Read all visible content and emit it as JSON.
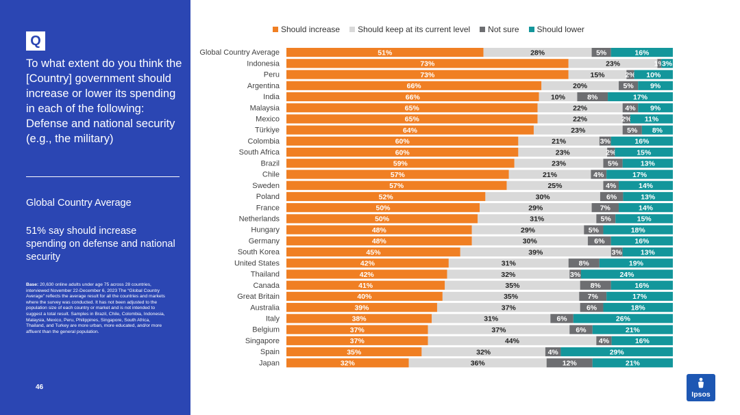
{
  "question": {
    "badge": "Q",
    "text": "To what extent do you think the [Country] government should increase or lower its spending in each of the following: Defense and national security (e.g., the military)"
  },
  "summary": {
    "title": "Global Country Average",
    "text": "51% say should increase spending on defense and national security"
  },
  "base_note": {
    "label": "Base:",
    "text": " 20,630 online adults under age 75 across 28 countries, interviewed November 22-December 6, 2023 The “Global Country Average” reflects the average result for all the countries and markets where the survey was conducted. It has not been adjusted to the population size of each country or market and is not intended to suggest a total result. Samples in Brazil, Chile, Colombia, Indonesia, Malaysia, Mexico, Peru, Philippines, Singapore, South Africa, Thailand, and Turkey are more urban, more educated, and/or more affluent than the general population."
  },
  "page_number": "46",
  "logo": {
    "text": "Ipsos",
    "color": "#1d57b3"
  },
  "colors": {
    "panel": "#2b46b3",
    "increase": "#f07f23",
    "keep": "#d9d9d9",
    "not_sure": "#6d6e71",
    "lower": "#13969b"
  },
  "chart_data": {
    "type": "bar",
    "orientation": "horizontal",
    "stacked": true,
    "xlim": [
      0,
      100
    ],
    "unit": "%",
    "categories": [
      "Global Country Average",
      "Indonesia",
      "Peru",
      "Argentina",
      "India",
      "Malaysia",
      "Mexico",
      "Türkiye",
      "Colombia",
      "South Africa",
      "Brazil",
      "Chile",
      "Sweden",
      "Poland",
      "France",
      "Netherlands",
      "Hungary",
      "Germany",
      "South Korea",
      "United States",
      "Thailand",
      "Canada",
      "Great Britain",
      "Australia",
      "Italy",
      "Belgium",
      "Singapore",
      "Spain",
      "Japan"
    ],
    "series": [
      {
        "name": "Should increase",
        "color": "#f07f23",
        "values": [
          51,
          73,
          73,
          66,
          66,
          65,
          65,
          64,
          60,
          60,
          59,
          57,
          57,
          52,
          50,
          50,
          48,
          48,
          45,
          42,
          42,
          41,
          40,
          39,
          38,
          37,
          37,
          35,
          32
        ]
      },
      {
        "name": "Should keep at its current level",
        "color": "#d9d9d9",
        "values": [
          28,
          23,
          15,
          20,
          10,
          22,
          22,
          23,
          21,
          23,
          23,
          21,
          25,
          30,
          29,
          31,
          29,
          30,
          39,
          31,
          32,
          35,
          35,
          37,
          31,
          37,
          44,
          32,
          36
        ]
      },
      {
        "name": "Not sure",
        "color": "#6d6e71",
        "values": [
          5,
          1,
          2,
          5,
          8,
          4,
          2,
          5,
          3,
          2,
          5,
          4,
          4,
          6,
          7,
          5,
          5,
          6,
          3,
          8,
          3,
          8,
          7,
          6,
          6,
          6,
          4,
          4,
          12
        ]
      },
      {
        "name": "Should lower",
        "color": "#13969b",
        "values": [
          16,
          3,
          10,
          9,
          17,
          9,
          11,
          8,
          16,
          15,
          13,
          17,
          14,
          13,
          14,
          15,
          18,
          16,
          13,
          19,
          24,
          16,
          17,
          18,
          26,
          21,
          16,
          29,
          21
        ]
      }
    ]
  }
}
